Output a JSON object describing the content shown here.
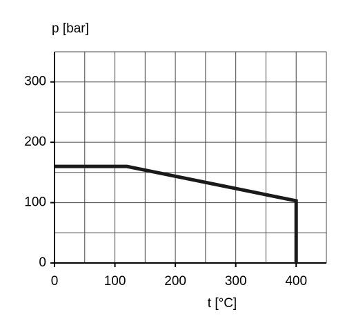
{
  "chart_data": {
    "type": "line",
    "y_label": "p [bar]",
    "x_label": "t [°C]",
    "x": [
      0,
      120,
      400,
      400
    ],
    "series": [
      {
        "values": [
          160,
          160,
          103,
          0
        ],
        "color": "#1a1a1a"
      }
    ],
    "xlim": [
      0,
      450
    ],
    "ylim": [
      0,
      350
    ],
    "xticks": [
      0,
      100,
      200,
      300,
      400
    ],
    "yticks": [
      0,
      100,
      200,
      300
    ],
    "xgrid": [
      50,
      100,
      150,
      200,
      250,
      300,
      350,
      400,
      450
    ],
    "ygrid": [
      50,
      100,
      150,
      200,
      250,
      300,
      350
    ],
    "grid": true
  }
}
